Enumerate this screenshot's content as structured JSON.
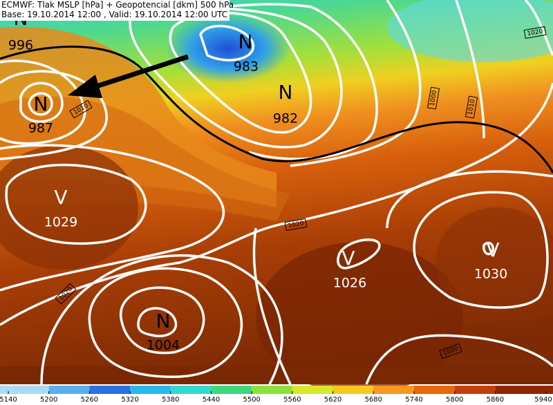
{
  "header": {
    "title": "ECMWF: Tlak MSLP [hPa] + Geopotencial [dkm] 500 hPa",
    "subtitle": "Base: 19.10.2014 12:00 , Valid: 19.10.2014 12:00 UTC"
  },
  "pressure_centers": [
    {
      "symbol": "N",
      "value": 996
    },
    {
      "symbol": "N",
      "value": 983
    },
    {
      "symbol": "N",
      "value": 982
    },
    {
      "symbol": "N",
      "value": 987
    },
    {
      "symbol": "V",
      "value": 1029
    },
    {
      "symbol": "N",
      "value": 1004
    },
    {
      "symbol": "V",
      "value": 1026
    },
    {
      "symbol": "V",
      "value": 1030
    }
  ],
  "isobar_labels": [
    1020,
    1010,
    1000,
    1010,
    1020,
    1020,
    1020
  ],
  "colorbar": {
    "ticks": [
      5140,
      5200,
      5260,
      5320,
      5380,
      5440,
      5500,
      5560,
      5620,
      5680,
      5740,
      5800,
      5860,
      5940
    ],
    "colors": [
      "#a8dcf4",
      "#5ab0ec",
      "#2f6fe0",
      "#2ab8e8",
      "#33d8d0",
      "#3cd880",
      "#8ce03c",
      "#d8e828",
      "#f8c820",
      "#f89820",
      "#e8680c",
      "#c0400a",
      "#8c2a06"
    ]
  }
}
